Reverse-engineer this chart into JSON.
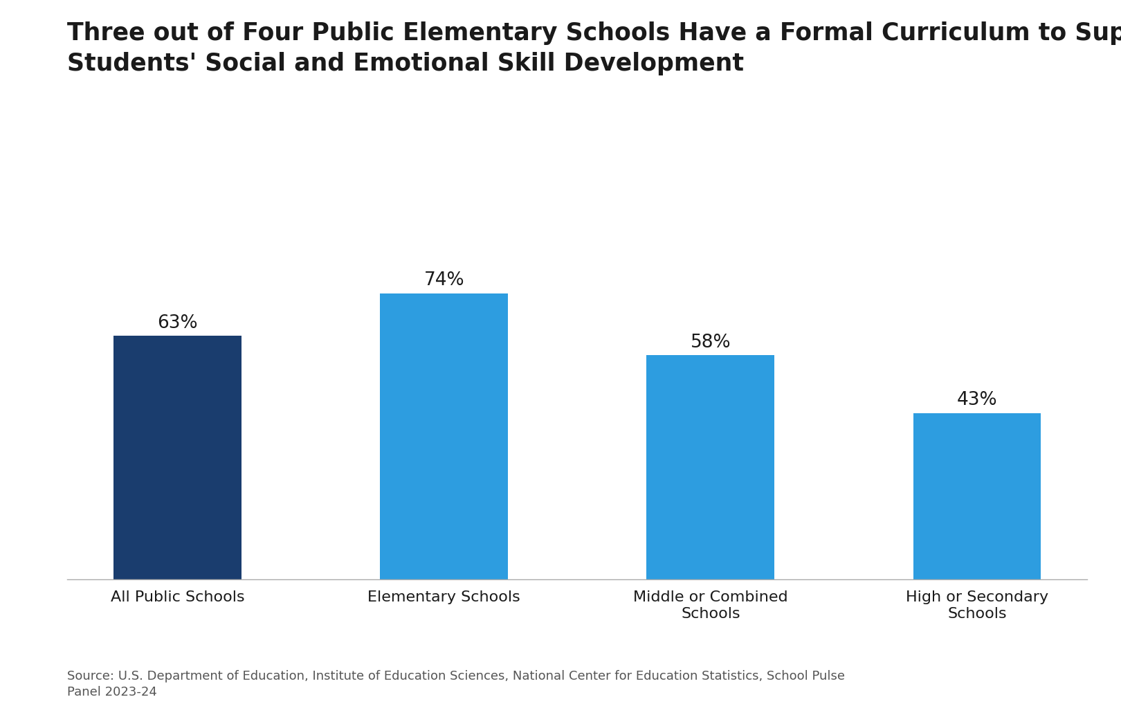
{
  "title_line1": "Three out of Four Public Elementary Schools Have a Formal Curriculum to Support",
  "title_line2": "Students' Social and Emotional Skill Development",
  "categories": [
    "All Public Schools",
    "Elementary Schools",
    "Middle or Combined\nSchools",
    "High or Secondary\nSchools"
  ],
  "values": [
    63,
    74,
    58,
    43
  ],
  "bar_colors": [
    "#1a3d6e",
    "#2d9de0",
    "#2d9de0",
    "#2d9de0"
  ],
  "value_labels": [
    "63%",
    "74%",
    "58%",
    "43%"
  ],
  "source_text": "Source: U.S. Department of Education, Institute of Education Sciences, National Center for Education Statistics, School Pulse\nPanel 2023-24",
  "ylim": [
    0,
    90
  ],
  "background_color": "#ffffff",
  "title_fontsize": 25,
  "bar_label_fontsize": 19,
  "xlabel_fontsize": 16,
  "source_fontsize": 13,
  "title_color": "#1a1a1a",
  "label_color": "#1a1a1a",
  "source_color": "#555555"
}
